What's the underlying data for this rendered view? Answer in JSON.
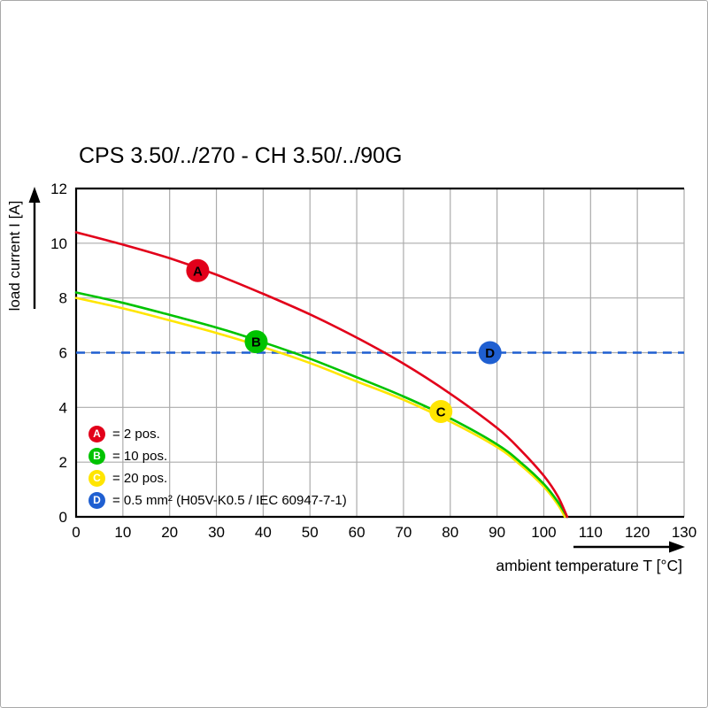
{
  "chart_data": {
    "type": "line",
    "title": "CPS 3.50/../270 - CH 3.50/../90G",
    "xlabel": "ambient temperature T [°C]",
    "ylabel": "load current I [A]",
    "xlim": [
      0,
      130
    ],
    "ylim": [
      0,
      12
    ],
    "xticks": [
      0,
      10,
      20,
      30,
      40,
      50,
      60,
      70,
      80,
      90,
      100,
      110,
      120,
      130
    ],
    "yticks": [
      0,
      2,
      4,
      6,
      8,
      10,
      12
    ],
    "grid": true,
    "grid_color": "#ababab",
    "axis_color": "#000000",
    "series": [
      {
        "id": "A",
        "label": "= 2 pos.",
        "color": "#e2001a",
        "kind": "curve",
        "points": [
          [
            0,
            10.4
          ],
          [
            10,
            9.95
          ],
          [
            20,
            9.45
          ],
          [
            30,
            8.85
          ],
          [
            40,
            8.15
          ],
          [
            50,
            7.4
          ],
          [
            60,
            6.55
          ],
          [
            70,
            5.6
          ],
          [
            80,
            4.5
          ],
          [
            90,
            3.25
          ],
          [
            95,
            2.45
          ],
          [
            100,
            1.5
          ],
          [
            103,
            0.75
          ],
          [
            105,
            0
          ]
        ],
        "marker_at": [
          26,
          9.0
        ]
      },
      {
        "id": "B",
        "label": "= 10 pos.",
        "color": "#00c300",
        "kind": "curve",
        "points": [
          [
            0,
            8.2
          ],
          [
            10,
            7.82
          ],
          [
            20,
            7.38
          ],
          [
            30,
            6.92
          ],
          [
            40,
            6.38
          ],
          [
            50,
            5.78
          ],
          [
            60,
            5.1
          ],
          [
            70,
            4.4
          ],
          [
            80,
            3.6
          ],
          [
            90,
            2.65
          ],
          [
            95,
            2.0
          ],
          [
            100,
            1.2
          ],
          [
            103,
            0.55
          ],
          [
            105,
            0
          ]
        ],
        "marker_at": [
          38.5,
          6.4
        ]
      },
      {
        "id": "C",
        "label": "= 20 pos.",
        "color": "#ffe500",
        "kind": "curve",
        "points": [
          [
            0,
            8.0
          ],
          [
            10,
            7.62
          ],
          [
            20,
            7.18
          ],
          [
            30,
            6.72
          ],
          [
            40,
            6.2
          ],
          [
            50,
            5.62
          ],
          [
            60,
            4.95
          ],
          [
            70,
            4.28
          ],
          [
            80,
            3.48
          ],
          [
            90,
            2.55
          ],
          [
            95,
            1.9
          ],
          [
            100,
            1.1
          ],
          [
            103,
            0.45
          ],
          [
            104.5,
            0
          ]
        ],
        "marker_at": [
          78,
          3.85
        ]
      },
      {
        "id": "D",
        "label": "= 0.5 mm² (H05V-K0.5 / IEC 60947-7-1)",
        "color": "#1f5fd1",
        "kind": "dashed-hline",
        "y": 6,
        "marker_at": [
          88.5,
          6
        ]
      }
    ]
  }
}
